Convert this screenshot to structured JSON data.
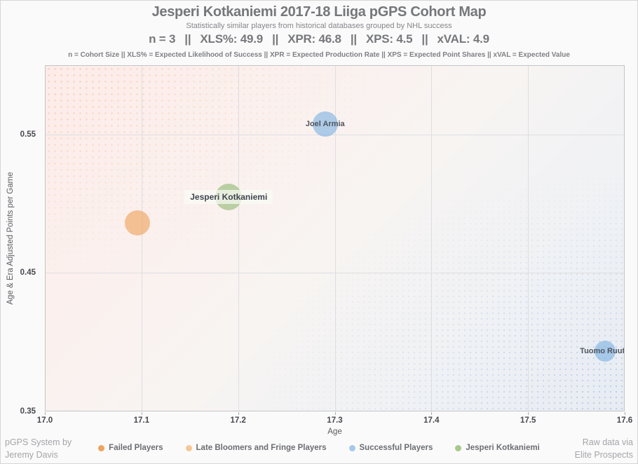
{
  "header": {
    "title": "Jesperi Kotkaniemi 2017-18 Liiga pGPS Cohort Map",
    "subtitle": "Statistically similar players from historical databases grouped by NHL success",
    "stats_segments": [
      "n = 3",
      "XLS%: 49.9",
      "XPR: 46.8",
      "XPS: 4.5",
      "xVAL: 4.9"
    ],
    "stats_separator": "||",
    "definitions": "n = Cohort Size || XLS% = Expected Likelihood of Success || XPR = Expected Production Rate || XPS = Expected Point Shares || xVAL = Expected Value"
  },
  "footer": {
    "credit_left": [
      "pGPS System by",
      "Jeremy Davis"
    ],
    "credit_right": [
      "Raw data via",
      "Elite Prospects"
    ]
  },
  "chart_data": {
    "type": "scatter",
    "title": "Jesperi Kotkaniemi 2017-18 Liiga pGPS Cohort Map",
    "xlabel": "Age",
    "ylabel": "Age & Era Adjusted Points per Game",
    "xlim": [
      17.0,
      17.6
    ],
    "ylim": [
      0.35,
      0.6
    ],
    "xticks": [
      "17.0",
      "17.1",
      "17.2",
      "17.3",
      "17.4",
      "17.5",
      "17.6"
    ],
    "yticks": [
      "0.35",
      "0.45",
      "0.55"
    ],
    "grid": true,
    "points": [
      {
        "label": "Joel Armia",
        "group": "successful",
        "x": 17.29,
        "y": 0.558,
        "r": 18,
        "highlight": false
      },
      {
        "label": "Jesperi Kotkaniemi",
        "group": "kotkaniemi",
        "x": 17.19,
        "y": 0.505,
        "r": 19,
        "highlight": true
      },
      {
        "label": "",
        "group": "failed",
        "x": 17.095,
        "y": 0.486,
        "r": 18,
        "highlight": false
      },
      {
        "label": "Tuomo Ruutu",
        "group": "successful",
        "x": 17.58,
        "y": 0.393,
        "r": 15,
        "highlight": false
      }
    ],
    "legend": [
      {
        "label": "Failed Players",
        "group": "failed",
        "color": "#eda45f"
      },
      {
        "label": "Late Bloomers and Fringe Players",
        "group": "late_bloomers",
        "color": "#f6c795"
      },
      {
        "label": "Successful Players",
        "group": "successful",
        "color": "#a6c9e8"
      },
      {
        "label": "Jesperi Kotkaniemi",
        "group": "kotkaniemi",
        "color": "#a8c98b"
      }
    ],
    "colors": {
      "failed_fill": "rgba(238, 160, 88, 0.60)",
      "late_bloomers_fill": "rgba(246, 199, 149, 0.65)",
      "successful_fill": "rgba(126, 177, 226, 0.62)",
      "kotkaniemi_fill": "rgba(139, 181, 108, 0.58)"
    },
    "legend_position": "bottom"
  }
}
